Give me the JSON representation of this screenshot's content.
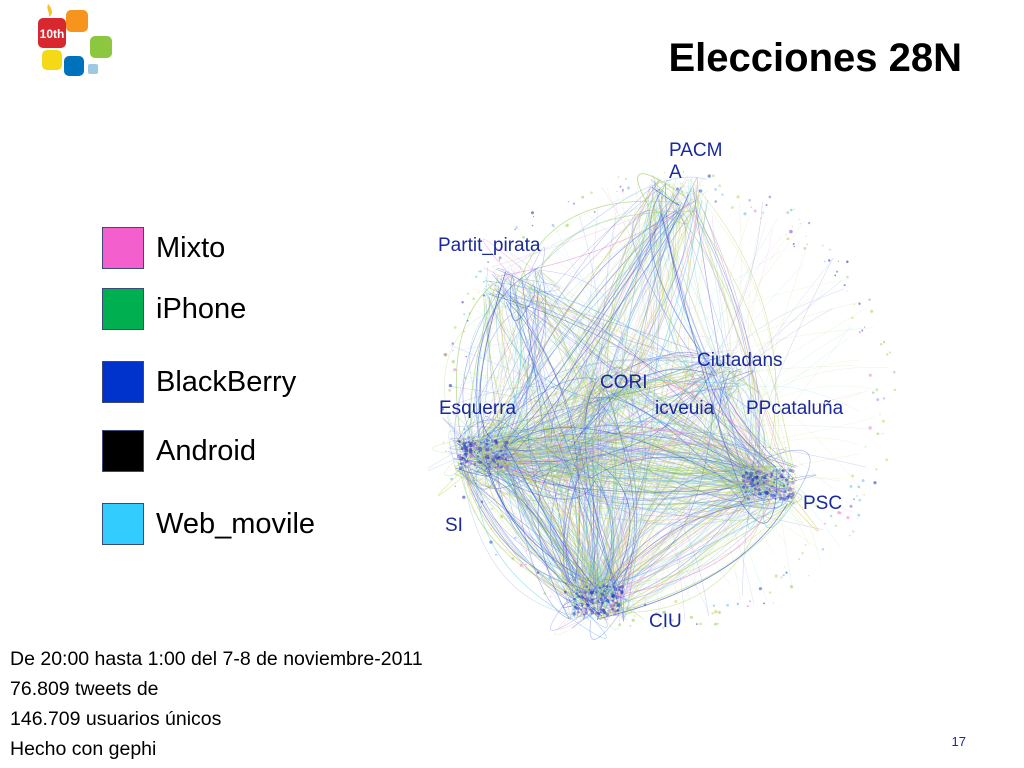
{
  "slide": {
    "title": "Elecciones 28N",
    "page_number": "17",
    "logo_text": "10th"
  },
  "legend": {
    "items": [
      {
        "label": "Mixto",
        "color": "#f45fce"
      },
      {
        "label": "iPhone",
        "color": "#00b050"
      },
      {
        "label": "BlackBerry",
        "color": "#0033cc"
      },
      {
        "label": "Android",
        "color": "#000000"
      },
      {
        "label": "Web_movile",
        "color": "#33ccff"
      }
    ]
  },
  "graph": {
    "node_labels": [
      "PACMA",
      "Partit_pirata",
      "Ciutadans",
      "CORI",
      "Esquerra",
      "icveuia",
      "PPcataluña",
      "PSC",
      "SI",
      "CIU"
    ]
  },
  "caption": {
    "lines": [
      "De 20:00 hasta 1:00 del 7-8 de noviembre-2011",
      "76.809 tweets de",
      "146.709 usuarios únicos",
      "Hecho con gephi"
    ]
  }
}
